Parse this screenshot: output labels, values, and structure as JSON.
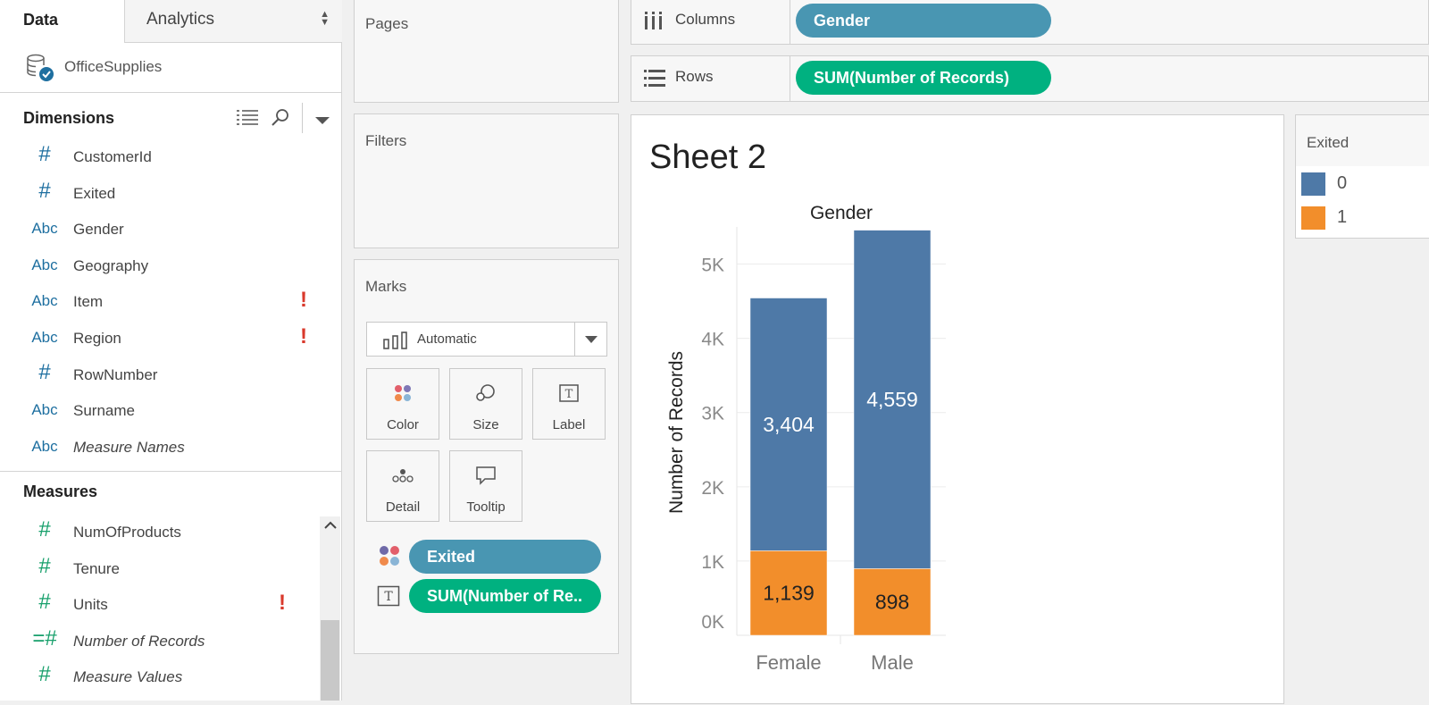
{
  "tabs": {
    "data": "Data",
    "analytics": "Analytics"
  },
  "datasource": {
    "name": "OfficeSupplies"
  },
  "dimensions": {
    "title": "Dimensions",
    "fields": [
      {
        "type": "#",
        "name": "CustomerId",
        "warn": false
      },
      {
        "type": "#",
        "name": "Exited",
        "warn": false
      },
      {
        "type": "Abc",
        "name": "Gender",
        "warn": false
      },
      {
        "type": "Abc",
        "name": "Geography",
        "warn": false
      },
      {
        "type": "Abc",
        "name": "Item",
        "warn": true
      },
      {
        "type": "Abc",
        "name": "Region",
        "warn": true
      },
      {
        "type": "#",
        "name": "RowNumber",
        "warn": false
      },
      {
        "type": "Abc",
        "name": "Surname",
        "warn": false
      },
      {
        "type": "Abc",
        "name": "Measure Names",
        "warn": false,
        "italic": true
      }
    ]
  },
  "measures": {
    "title": "Measures",
    "fields": [
      {
        "type": "#",
        "name": "NumOfProducts",
        "warn": false
      },
      {
        "type": "#",
        "name": "Tenure",
        "warn": false
      },
      {
        "type": "#",
        "name": "Units",
        "warn": true
      },
      {
        "type": "=#",
        "name": "Number of Records",
        "warn": false,
        "italic": true
      },
      {
        "type": "#",
        "name": "Measure Values",
        "warn": false,
        "italic": true
      }
    ]
  },
  "cards": {
    "pages": "Pages",
    "filters": "Filters",
    "marks": "Marks"
  },
  "marks": {
    "type": "Automatic",
    "buttons": [
      "Color",
      "Size",
      "Label",
      "Detail",
      "Tooltip"
    ],
    "pills": [
      {
        "icon": "color",
        "label": "Exited",
        "kind": "dim"
      },
      {
        "icon": "label",
        "label": "SUM(Number of Re.."
      }
    ]
  },
  "shelves": {
    "columns": {
      "label": "Columns",
      "pill": "Gender"
    },
    "rows": {
      "label": "Rows",
      "pill": "SUM(Number of Records)"
    }
  },
  "sheet": {
    "title": "Sheet 2"
  },
  "legend": {
    "title": "Exited",
    "items": [
      {
        "label": "0",
        "color": "#4e79a7"
      },
      {
        "label": "1",
        "color": "#f28e2b"
      }
    ]
  },
  "chart_data": {
    "type": "bar",
    "stacked": true,
    "title": "Gender",
    "xlabel": "",
    "ylabel": "Number of Records",
    "categories": [
      "Female",
      "Male"
    ],
    "series": [
      {
        "name": "1",
        "values": [
          1139,
          898
        ],
        "color": "#f28e2b"
      },
      {
        "name": "0",
        "values": [
          3404,
          4559
        ],
        "color": "#4e79a7"
      }
    ],
    "yticks": [
      0,
      1000,
      2000,
      3000,
      4000,
      5000
    ],
    "ytick_labels": [
      "0K",
      "1K",
      "2K",
      "3K",
      "4K",
      "5K"
    ],
    "ylim": [
      0,
      5500
    ],
    "grid": true
  }
}
